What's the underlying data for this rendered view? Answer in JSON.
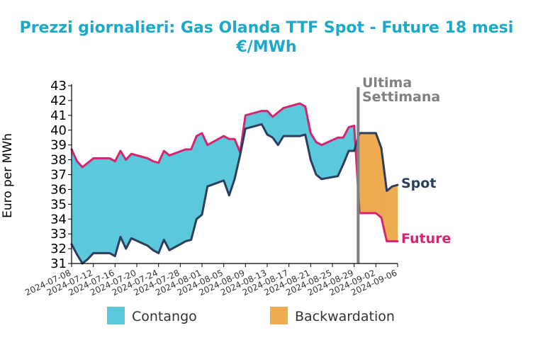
{
  "chart_data": {
    "type": "area",
    "title": "Prezzi giornalieri: Gas Olanda TTF Spot - Future 18 mesi",
    "subtitle": "€/MWh",
    "ylabel": "Euro per MWh",
    "xlabel": "",
    "ylim": [
      31,
      43
    ],
    "yticks": [
      31,
      32,
      33,
      34,
      35,
      36,
      37,
      38,
      39,
      40,
      41,
      42,
      43
    ],
    "xlim": [
      "2024-07-08",
      "2024-09-06"
    ],
    "xticks": [
      "2024-07-08",
      "2024-07-12",
      "2024-07-16",
      "2024-07-20",
      "2024-07-24",
      "2024-07-28",
      "2024-08-01",
      "2024-08-05",
      "2024-08-09",
      "2024-08-13",
      "2024-08-17",
      "2024-08-21",
      "2024-08-25",
      "2024-08-29",
      "2024-09-02",
      "2024-09-06"
    ],
    "marker_date": "2024-08-30",
    "marker_label_1": "Ultima",
    "marker_label_2": "Settimana",
    "spot_end_label": "Spot",
    "future_end_label": "Future",
    "colors": {
      "title": "#1aa9c8",
      "spot": "#2c3e5e",
      "future": "#d6246e",
      "contango": "#5bc8dc",
      "backwardation": "#eeab4f",
      "marker": "#808080"
    },
    "legend": [
      "Contango",
      "Backwardation"
    ],
    "legend_position": "bottom",
    "grid": false,
    "series": [
      {
        "name": "Spot",
        "x": [
          "2024-07-08",
          "2024-07-09",
          "2024-07-10",
          "2024-07-11",
          "2024-07-12",
          "2024-07-15",
          "2024-07-16",
          "2024-07-17",
          "2024-07-18",
          "2024-07-19",
          "2024-07-22",
          "2024-07-23",
          "2024-07-24",
          "2024-07-25",
          "2024-07-26",
          "2024-07-29",
          "2024-07-30",
          "2024-07-31",
          "2024-08-01",
          "2024-08-02",
          "2024-08-05",
          "2024-08-06",
          "2024-08-07",
          "2024-08-08",
          "2024-08-09",
          "2024-08-12",
          "2024-08-13",
          "2024-08-14",
          "2024-08-15",
          "2024-08-16",
          "2024-08-19",
          "2024-08-20",
          "2024-08-21",
          "2024-08-22",
          "2024-08-23",
          "2024-08-26",
          "2024-08-27",
          "2024-08-28",
          "2024-08-29",
          "2024-08-30",
          "2024-09-02",
          "2024-09-03",
          "2024-09-04",
          "2024-09-05",
          "2024-09-06"
        ],
        "values": [
          32.3,
          31.6,
          31.0,
          31.3,
          31.7,
          31.7,
          31.5,
          32.8,
          32.0,
          32.7,
          32.2,
          31.9,
          31.7,
          32.6,
          31.9,
          32.5,
          32.6,
          34.0,
          34.3,
          36.2,
          36.6,
          35.6,
          36.7,
          38.3,
          40.1,
          40.4,
          39.7,
          39.5,
          39.0,
          39.6,
          39.6,
          39.7,
          38.0,
          37.0,
          36.7,
          36.9,
          37.7,
          38.6,
          38.6,
          39.8,
          39.8,
          38.8,
          35.9,
          36.2,
          36.3
        ]
      },
      {
        "name": "Future",
        "x": [
          "2024-07-08",
          "2024-07-09",
          "2024-07-10",
          "2024-07-11",
          "2024-07-12",
          "2024-07-15",
          "2024-07-16",
          "2024-07-17",
          "2024-07-18",
          "2024-07-19",
          "2024-07-22",
          "2024-07-23",
          "2024-07-24",
          "2024-07-25",
          "2024-07-26",
          "2024-07-29",
          "2024-07-30",
          "2024-07-31",
          "2024-08-01",
          "2024-08-02",
          "2024-08-05",
          "2024-08-06",
          "2024-08-07",
          "2024-08-08",
          "2024-08-09",
          "2024-08-12",
          "2024-08-13",
          "2024-08-14",
          "2024-08-15",
          "2024-08-16",
          "2024-08-19",
          "2024-08-20",
          "2024-08-21",
          "2024-08-22",
          "2024-08-23",
          "2024-08-26",
          "2024-08-27",
          "2024-08-28",
          "2024-08-29",
          "2024-08-30",
          "2024-09-02",
          "2024-09-03",
          "2024-09-04",
          "2024-09-05",
          "2024-09-06"
        ],
        "values": [
          38.7,
          37.9,
          37.5,
          37.8,
          38.1,
          38.1,
          37.9,
          38.6,
          38.0,
          38.4,
          38.1,
          37.9,
          37.8,
          38.6,
          38.3,
          38.7,
          38.7,
          39.6,
          39.8,
          39.0,
          39.6,
          39.4,
          39.4,
          38.5,
          41.0,
          41.3,
          41.3,
          40.9,
          41.2,
          41.5,
          41.8,
          41.6,
          39.8,
          39.2,
          39.0,
          39.5,
          39.5,
          40.2,
          40.3,
          34.4,
          34.4,
          34.1,
          32.5,
          32.5,
          32.5
        ]
      }
    ]
  }
}
